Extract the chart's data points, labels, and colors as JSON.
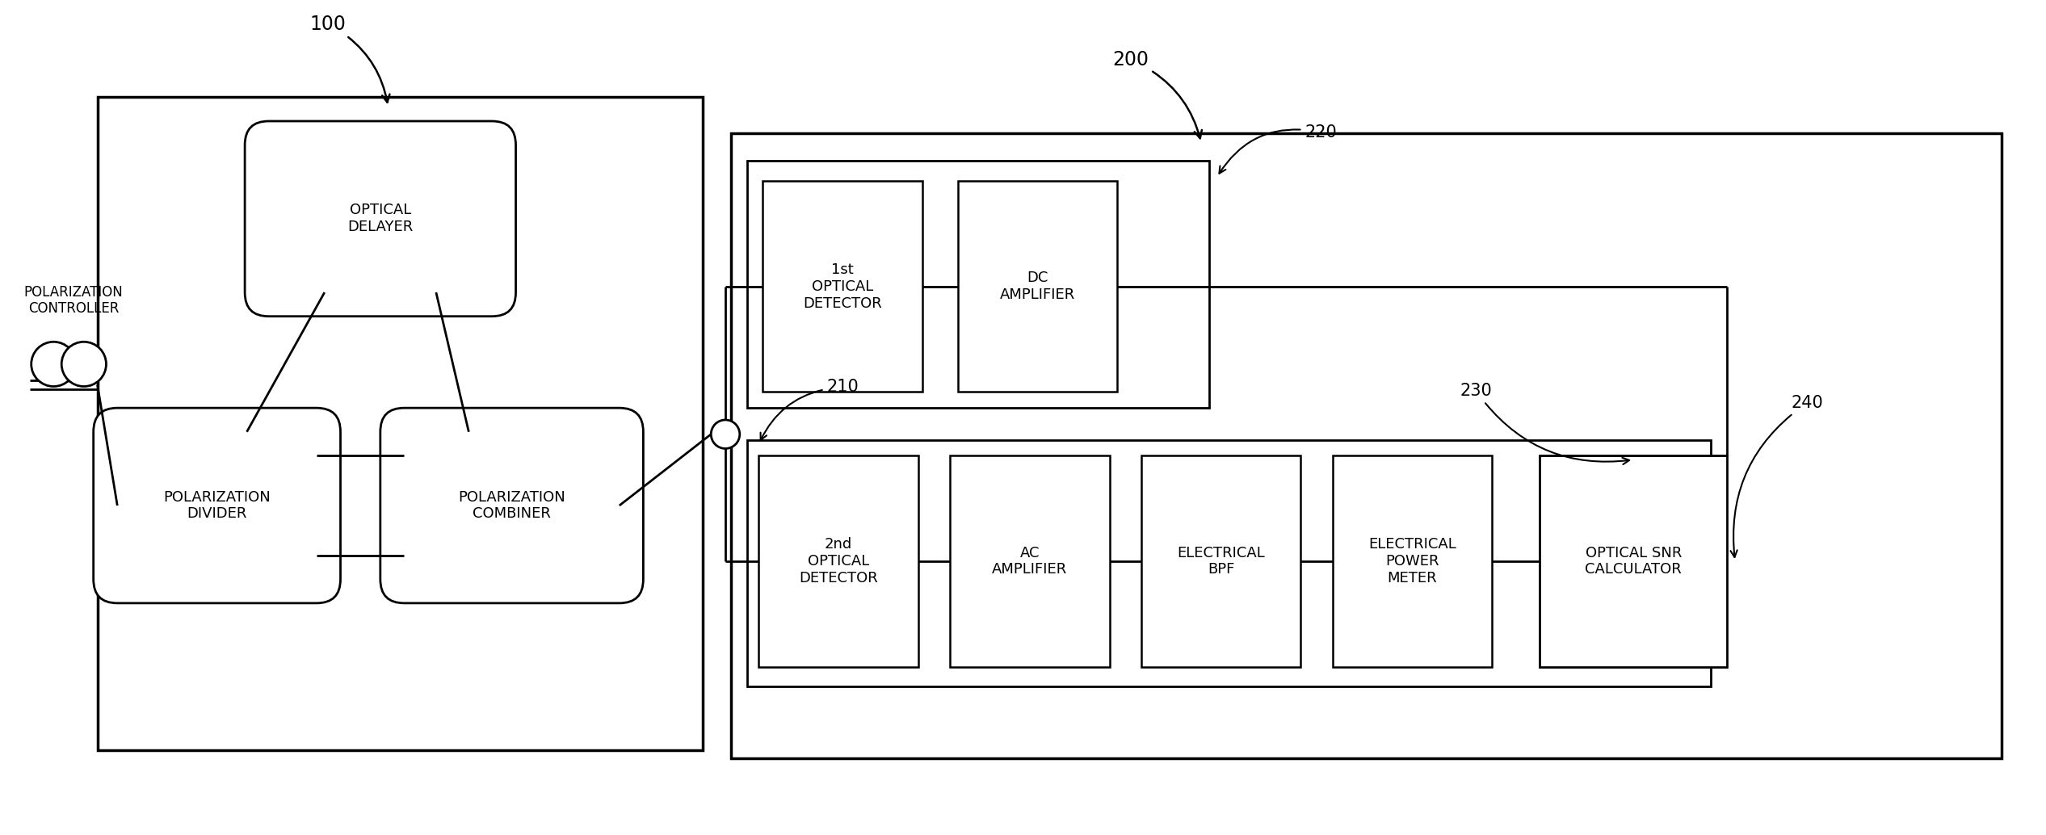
{
  "bg_color": "#ffffff",
  "fig_width": 25.33,
  "fig_height": 10.34,
  "label_100": "100",
  "label_200": "200",
  "label_210": "210",
  "label_220": "220",
  "label_230": "230",
  "label_240": "240",
  "pol_ctrl_label": "POLARIZATION\nCONTROLLER",
  "opt_delay_label": "OPTICAL\nDELAYER",
  "pol_div_label": "POLARIZATION\nDIVIDER",
  "pol_comb_label": "POLARIZATION\nCOMBINER",
  "det1_label": "1st\nOPTICAL\nDETECTOR",
  "dc_amp_label": "DC\nAMPLIFIER",
  "det2_label": "2nd\nOPTICAL\nDETECTOR",
  "ac_amp_label": "AC\nAMPLIFIER",
  "bpf_label": "ELECTRICAL\nBPF",
  "epm_label": "ELECTRICAL\nPOWER\nMETER",
  "snr_label": "OPTICAL SNR\nCALCULATOR"
}
